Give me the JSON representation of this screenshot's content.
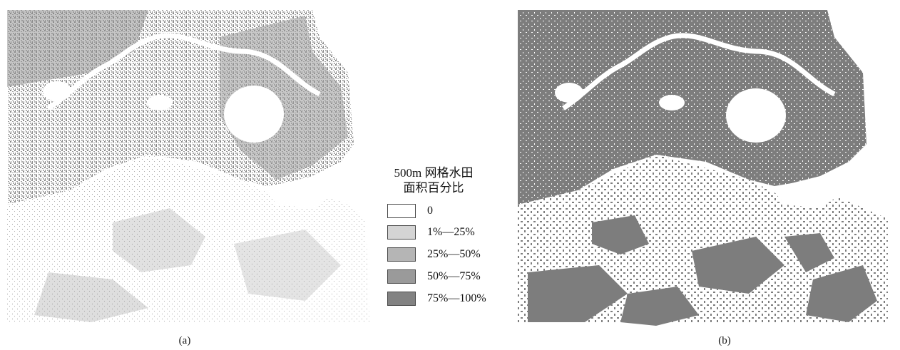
{
  "panels": [
    {
      "caption": "(a)",
      "fill_color": "#878787",
      "density": "fine-speckled"
    },
    {
      "caption": "(b)",
      "fill_color": "#7d7d7d",
      "density": "solid-patches"
    }
  ],
  "legend": {
    "title_line1": "500m 网格水田",
    "title_line2": "面积百分比",
    "items": [
      {
        "label": "0",
        "color": "#ffffff"
      },
      {
        "label": "1%—25%",
        "color": "#d4d4d4"
      },
      {
        "label": "25%—50%",
        "color": "#b5b5b5"
      },
      {
        "label": "50%—75%",
        "color": "#9a9a9a"
      },
      {
        "label": "75%—100%",
        "color": "#828282"
      }
    ]
  }
}
